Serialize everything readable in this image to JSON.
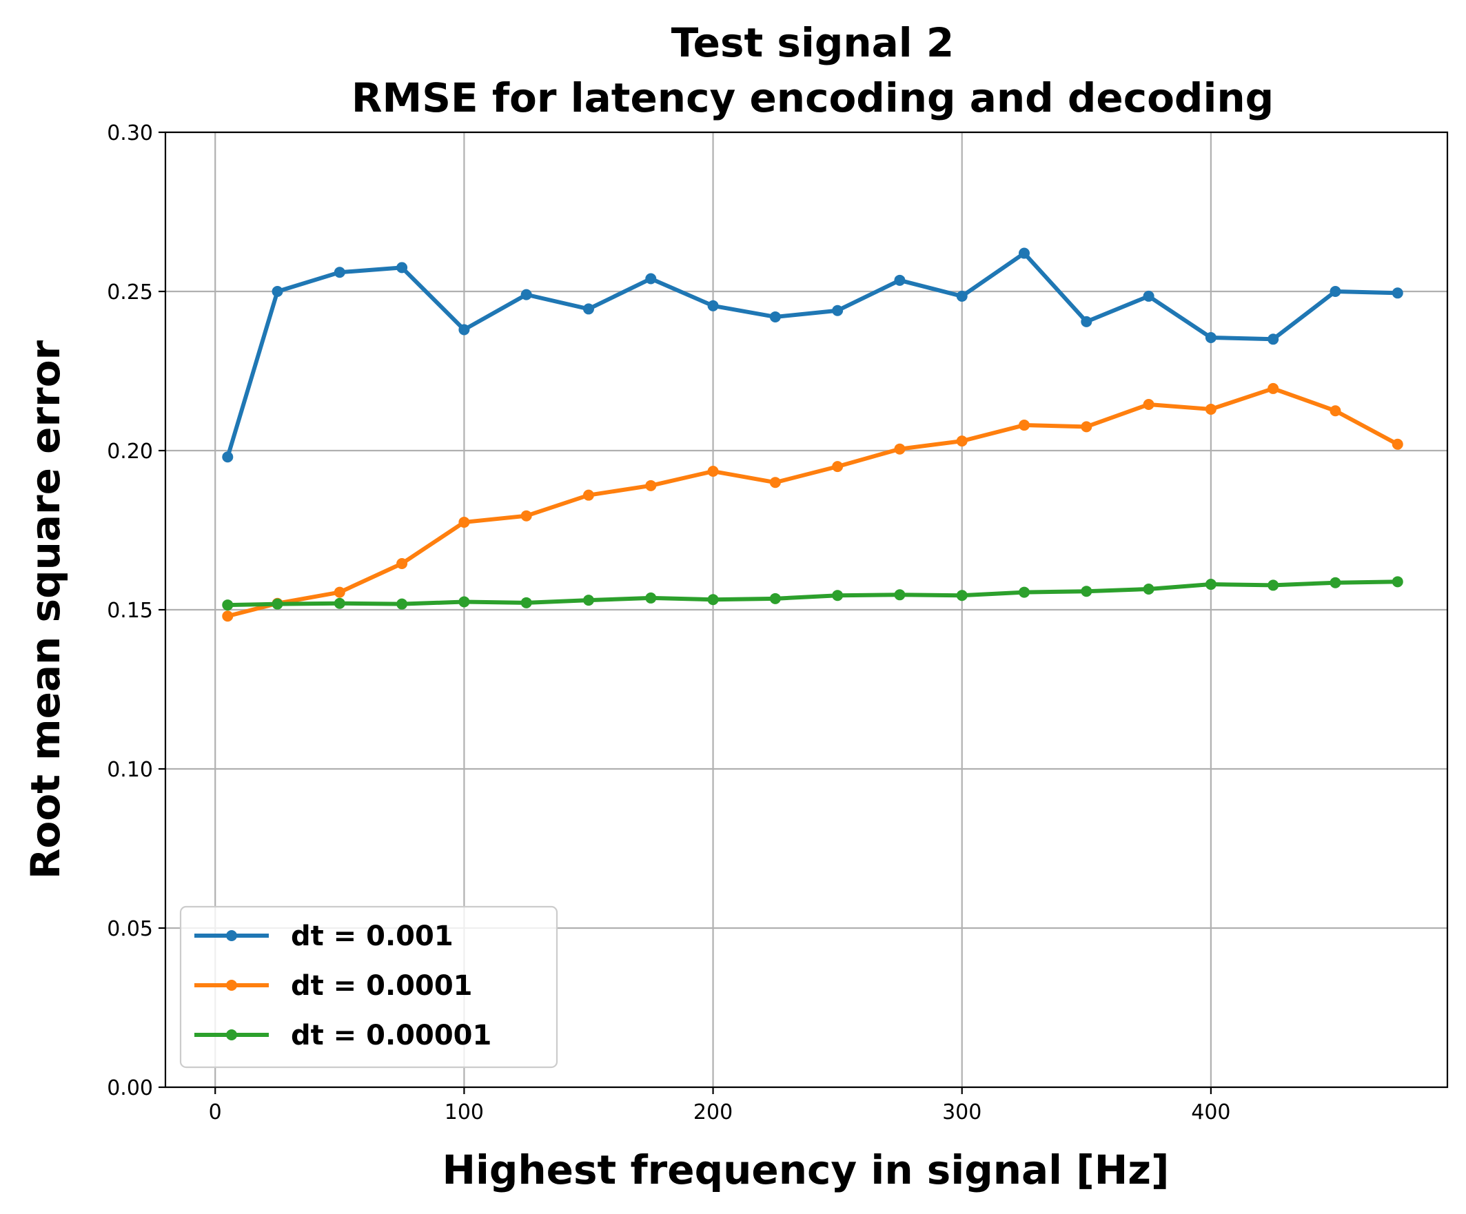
{
  "chart_data": {
    "type": "line",
    "title_line1": "Test signal 2",
    "title_line2": "RMSE for latency encoding and decoding",
    "xlabel": "Highest frequency in signal [Hz]",
    "ylabel": "Root mean square error",
    "xlim": [
      -20,
      495
    ],
    "ylim": [
      0.0,
      0.3
    ],
    "xticks": [
      0,
      100,
      200,
      300,
      400
    ],
    "xtick_labels": [
      "0",
      "100",
      "200",
      "300",
      "400"
    ],
    "yticks": [
      0.0,
      0.05,
      0.1,
      0.15,
      0.2,
      0.25,
      0.3
    ],
    "ytick_labels": [
      "0.00",
      "0.05",
      "0.10",
      "0.15",
      "0.20",
      "0.25",
      "0.30"
    ],
    "grid": true,
    "legend_position": "lower-left",
    "x": [
      5,
      25,
      50,
      75,
      100,
      125,
      150,
      175,
      200,
      225,
      250,
      275,
      300,
      325,
      350,
      375,
      400,
      425,
      450,
      475
    ],
    "series": [
      {
        "name": "dt = 0.001",
        "color": "#1f77b4",
        "values": [
          0.198,
          0.25,
          0.256,
          0.2575,
          0.238,
          0.249,
          0.2445,
          0.254,
          0.2455,
          0.242,
          0.244,
          0.2535,
          0.2485,
          0.262,
          0.2405,
          0.2485,
          0.2355,
          0.235,
          0.25,
          0.2495
        ]
      },
      {
        "name": "dt = 0.0001",
        "color": "#ff7f0e",
        "values": [
          0.148,
          0.152,
          0.1555,
          0.1645,
          0.1775,
          0.1795,
          0.186,
          0.189,
          0.1935,
          0.19,
          0.195,
          0.2005,
          0.203,
          0.208,
          0.2075,
          0.2145,
          0.213,
          0.2195,
          0.2125,
          0.202
        ]
      },
      {
        "name": "dt = 0.00001",
        "color": "#2ca02c",
        "values": [
          0.1515,
          0.1518,
          0.152,
          0.1518,
          0.1525,
          0.1522,
          0.153,
          0.1537,
          0.1532,
          0.1535,
          0.1545,
          0.1547,
          0.1545,
          0.1555,
          0.1558,
          0.1565,
          0.158,
          0.1577,
          0.1585,
          0.1588
        ]
      }
    ]
  }
}
